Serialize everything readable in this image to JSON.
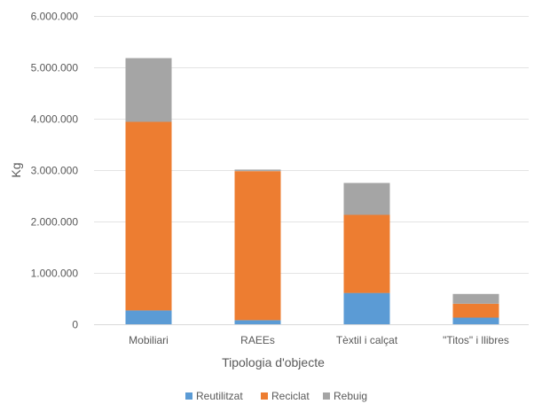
{
  "chart_data": {
    "type": "bar",
    "stacked": true,
    "categories": [
      "Mobiliari",
      "RAEEs",
      "Tèxtil i calçat",
      "\"Titos\" i llibres"
    ],
    "series": [
      {
        "name": "Reutilitzat",
        "color": "#5b9bd5",
        "values": [
          270000,
          80000,
          610000,
          130000
        ]
      },
      {
        "name": "Reciclat",
        "color": "#ed7d31",
        "values": [
          3670000,
          2900000,
          1520000,
          270000
        ]
      },
      {
        "name": "Rebuig",
        "color": "#a5a5a5",
        "values": [
          1240000,
          30000,
          620000,
          190000
        ]
      }
    ],
    "xlabel": "Tipologia d'objecte",
    "ylabel": "Kg",
    "ylim": [
      0,
      6000000
    ],
    "yticks": [
      0,
      1000000,
      2000000,
      3000000,
      4000000,
      5000000,
      6000000
    ],
    "ytick_labels": [
      "0",
      "1.000.000",
      "2.000.000",
      "3.000.000",
      "4.000.000",
      "5.000.000",
      "6.000.000"
    ],
    "grid": true,
    "legend": "bottom"
  }
}
